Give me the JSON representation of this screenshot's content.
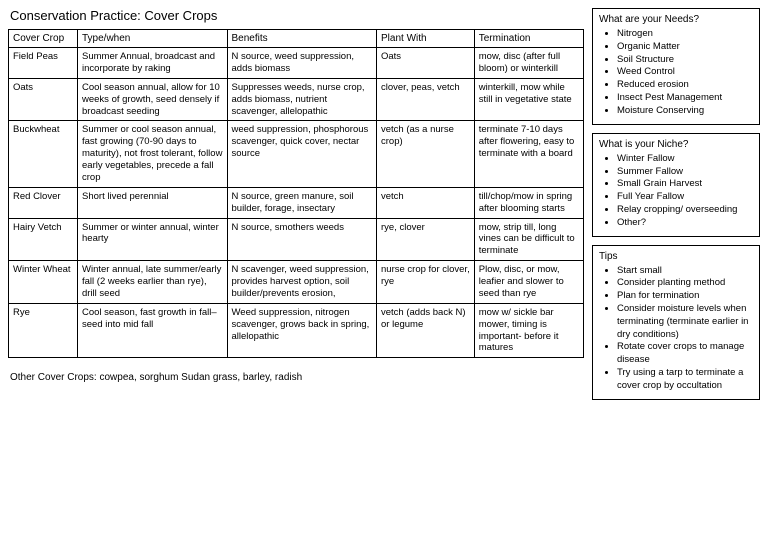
{
  "title": "Conservation Practice: Cover Crops",
  "table": {
    "columns": [
      "Cover Crop",
      "Type/when",
      "Benefits",
      "Plant With",
      "Termination"
    ],
    "rows": [
      [
        "Field Peas",
        "Summer Annual, broadcast and incorporate by raking",
        "N source, weed suppression, adds biomass",
        "Oats",
        "mow, disc (after full bloom) or winterkill"
      ],
      [
        "Oats",
        "Cool season annual, allow for 10 weeks of growth, seed densely if broadcast seeding",
        "Suppresses weeds, nurse crop, adds biomass, nutrient scavenger, allelopathic",
        "clover, peas, vetch",
        "winterkill, mow while still in vegetative state"
      ],
      [
        "Buckwheat",
        "Summer or cool season annual, fast growing (70-90 days to maturity), not frost tolerant, follow early vegetables, precede a fall crop",
        "weed suppression, phosphorous scavenger, quick cover, nectar source",
        "vetch (as a nurse crop)",
        "terminate 7-10 days after flowering, easy to terminate with a board"
      ],
      [
        "Red Clover",
        "Short lived perennial",
        "N source, green manure, soil builder, forage, insectary",
        "vetch",
        "till/chop/mow in spring after blooming starts"
      ],
      [
        "Hairy Vetch",
        "Summer or winter annual, winter hearty",
        "N source, smothers weeds",
        "rye, clover",
        "mow, strip till, long vines can be difficult to terminate"
      ],
      [
        "Winter Wheat",
        "Winter annual, late summer/early fall (2 weeks earlier than rye), drill seed",
        "N scavenger, weed suppression, provides harvest option, soil builder/prevents erosion,",
        "nurse crop for clover, rye",
        "Plow, disc, or mow, leafier and slower to seed than rye"
      ],
      [
        "Rye",
        "Cool season, fast growth in fall– seed into mid fall",
        "Weed suppression, nitrogen scavenger, grows back in spring, allelopathic",
        "vetch (adds back N) or legume",
        "mow w/ sickle bar mower, timing is important- before it matures"
      ]
    ]
  },
  "footnote": "Other Cover Crops: cowpea, sorghum Sudan grass, barley, radish",
  "sidebar": {
    "needs": {
      "title": "What are your Needs?",
      "items": [
        "Nitrogen",
        "Organic Matter",
        "Soil Structure",
        "Weed Control",
        "Reduced erosion",
        "Insect Pest Management",
        "Moisture Conserving"
      ]
    },
    "niche": {
      "title": "What is your Niche?",
      "items": [
        "Winter Fallow",
        "Summer Fallow",
        "Small Grain Harvest",
        "Full Year Fallow",
        "Relay cropping/ overseeding",
        "Other?"
      ]
    },
    "tips": {
      "title": "Tips",
      "items": [
        "Start small",
        "Consider planting method",
        "Plan for termination",
        "Consider moisture levels when terminating (terminate earlier in dry conditions)",
        "Rotate cover crops to manage disease",
        "Try using a tarp to terminate a cover crop by occultation"
      ]
    }
  }
}
